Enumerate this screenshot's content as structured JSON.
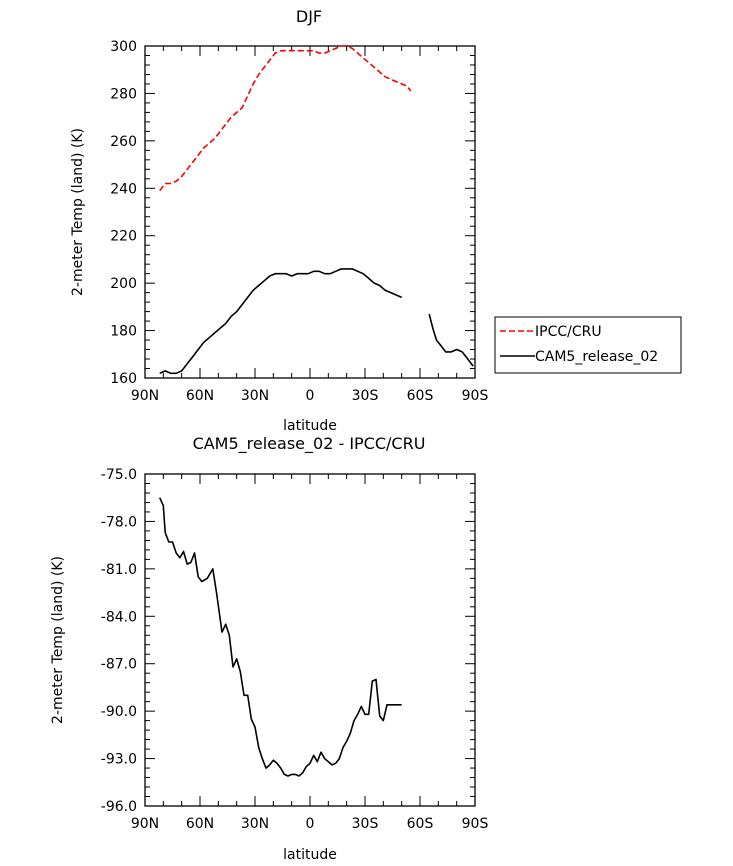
{
  "chart_data": [
    {
      "type": "line",
      "title": "DJF",
      "xlabel": "latitude",
      "ylabel": "2-meter Temp (land) (K)",
      "xlim": [
        -90,
        90
      ],
      "ylim": [
        160,
        300
      ],
      "xticks": [
        -90,
        -60,
        -30,
        0,
        30,
        60,
        90
      ],
      "xtick_labels": [
        "90N",
        "60N",
        "30N",
        "0",
        "30S",
        "60S",
        "90S"
      ],
      "yticks": [
        160,
        180,
        200,
        220,
        240,
        260,
        280,
        300
      ],
      "ytick_labels": [
        "160",
        "180",
        "200",
        "220",
        "240",
        "260",
        "280",
        "300"
      ],
      "legend": [
        "IPCC/CRU",
        "CAM5_release_02"
      ],
      "series": [
        {
          "name": "IPCC/CRU",
          "color": "#ff0000",
          "dash": "dashed",
          "x": [
            -82,
            -79,
            -76,
            -73,
            -70,
            -67,
            -64,
            -61,
            -58,
            -55,
            -52,
            -49,
            -46,
            -43,
            -40,
            -37,
            -34,
            -31,
            -28,
            -25,
            -22,
            -19,
            -16,
            -13,
            -10,
            -7,
            -4,
            -1,
            2,
            5,
            8,
            11,
            14,
            17,
            20,
            23,
            26,
            29,
            32,
            35,
            38,
            41,
            44,
            47,
            50,
            53,
            55
          ],
          "y": [
            239,
            242,
            242,
            243,
            245,
            248,
            251,
            254,
            257,
            259,
            261,
            264,
            267,
            270,
            272,
            274,
            279,
            284,
            288,
            291,
            294,
            297,
            298,
            298,
            298,
            298,
            298,
            298,
            298,
            297,
            297,
            298,
            299,
            300,
            300,
            299,
            297,
            295,
            293,
            291,
            289,
            287,
            286,
            285,
            284,
            283,
            281
          ]
        },
        {
          "name": "CAM5_release_02",
          "color": "#000000",
          "dash": "solid",
          "x": [
            -82,
            -79,
            -76,
            -73,
            -70,
            -67,
            -64,
            -61,
            -58,
            -55,
            -52,
            -49,
            -46,
            -43,
            -40,
            -37,
            -34,
            -31,
            -28,
            -25,
            -22,
            -19,
            -16,
            -13,
            -10,
            -7,
            -4,
            -1,
            2,
            5,
            8,
            11,
            14,
            17,
            20,
            23,
            26,
            29,
            32,
            35,
            38,
            41,
            44,
            47,
            50,
            null,
            65,
            67,
            69,
            71,
            74,
            77,
            80,
            83,
            86,
            89
          ],
          "y": [
            162,
            163,
            162,
            162,
            163,
            166,
            169,
            172,
            175,
            177,
            179,
            181,
            183,
            186,
            188,
            191,
            194,
            197,
            199,
            201,
            203,
            204,
            204,
            204,
            203,
            204,
            204,
            204,
            205,
            205,
            204,
            204,
            205,
            206,
            206,
            206,
            205,
            204,
            202,
            200,
            199,
            197,
            196,
            195,
            194,
            null,
            187,
            181,
            176,
            174,
            171,
            171,
            172,
            171,
            168,
            165
          ]
        }
      ]
    },
    {
      "type": "line",
      "title": "CAM5_release_02 - IPCC/CRU",
      "xlabel": "latitude",
      "ylabel": "2-meter Temp (land) (K)",
      "xlim": [
        -90,
        90
      ],
      "ylim": [
        -96,
        -75
      ],
      "xticks": [
        -90,
        -60,
        -30,
        0,
        30,
        60,
        90
      ],
      "xtick_labels": [
        "90N",
        "60N",
        "30N",
        "0",
        "30S",
        "60S",
        "90S"
      ],
      "yticks": [
        -96,
        -93,
        -90,
        -87,
        -84,
        -81,
        -78,
        -75
      ],
      "ytick_labels": [
        "-96.0",
        "-93.0",
        "-90.0",
        "-87.0",
        "-84.0",
        "-81.0",
        "-78.0",
        "-75.0"
      ],
      "series": [
        {
          "name": "CAM5_release_02 - IPCC/CRU",
          "color": "#000000",
          "dash": "solid",
          "x": [
            -82,
            -80,
            -79,
            -77,
            -75,
            -73,
            -71,
            -69,
            -67,
            -65,
            -63,
            -61,
            -59,
            -56,
            -53,
            -51,
            -48,
            -46,
            -44,
            -42,
            -40,
            -38,
            -36,
            -34,
            -32,
            -30,
            -28,
            -26,
            -24,
            -22,
            -20,
            -18,
            -16,
            -14,
            -12,
            -10,
            -8,
            -6,
            -4,
            -2,
            0,
            2,
            4,
            6,
            8,
            10,
            12,
            14,
            16,
            18,
            20,
            22,
            24,
            26,
            28,
            30,
            32,
            34,
            36,
            38,
            40,
            42,
            44,
            46,
            48,
            50
          ],
          "y": [
            -76.5,
            -77.0,
            -78.7,
            -79.3,
            -79.3,
            -80.0,
            -80.3,
            -79.9,
            -80.7,
            -80.6,
            -80.0,
            -81.5,
            -81.8,
            -81.6,
            -81.0,
            -82.5,
            -85.0,
            -84.5,
            -85.2,
            -87.2,
            -86.7,
            -87.5,
            -89.0,
            -89.0,
            -90.5,
            -91.0,
            -92.3,
            -93.0,
            -93.6,
            -93.4,
            -93.1,
            -93.3,
            -93.6,
            -94.0,
            -94.1,
            -94.0,
            -94.0,
            -94.1,
            -93.9,
            -93.5,
            -93.3,
            -92.8,
            -93.2,
            -92.6,
            -93.0,
            -93.2,
            -93.4,
            -93.3,
            -93.0,
            -92.3,
            -91.9,
            -91.4,
            -90.6,
            -90.2,
            -89.7,
            -90.2,
            -90.2,
            -88.1,
            -88.0,
            -90.3,
            -90.6,
            -89.6,
            -89.6,
            -89.6,
            -89.6,
            -89.6
          ]
        }
      ]
    }
  ],
  "legend_box": {
    "items": [
      {
        "label": "IPCC/CRU",
        "color": "#ff0000",
        "dash": "dashed"
      },
      {
        "label": "CAM5_release_02",
        "color": "#000000",
        "dash": "solid"
      }
    ]
  }
}
